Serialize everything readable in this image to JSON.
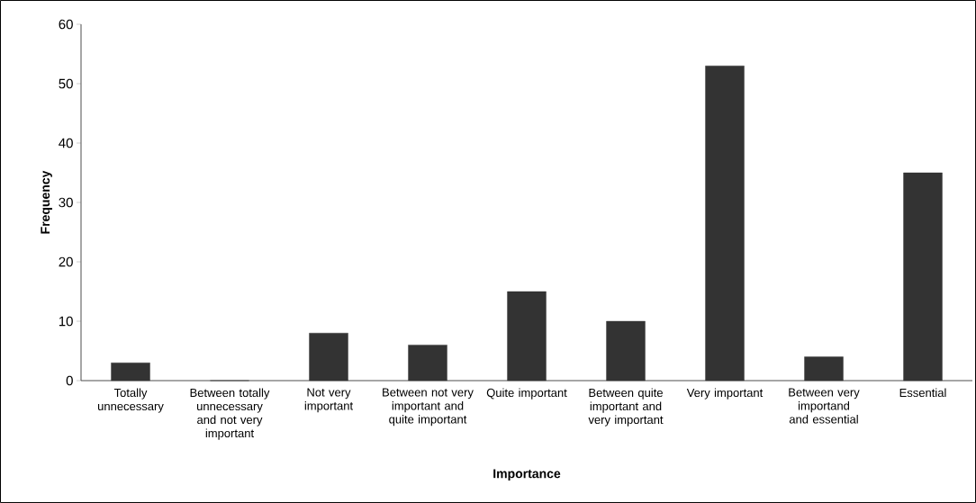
{
  "chart_data": {
    "type": "bar",
    "xlabel": "Importance",
    "ylabel": "Frequency",
    "categories": [
      "Totally unnecessary",
      "Between totally unnecessary and not very important",
      "Not very important",
      "Between not very important and quite important",
      "Quite important",
      "Between quite important and very important",
      "Very important",
      "Between very importand and essential",
      "Essential"
    ],
    "values": [
      3,
      0,
      8,
      6,
      15,
      10,
      53,
      4,
      35
    ],
    "color": "#333333",
    "ylim": [
      0,
      60
    ],
    "yticks": [
      0,
      10,
      20,
      30,
      40,
      50,
      60
    ],
    "grid": false
  }
}
